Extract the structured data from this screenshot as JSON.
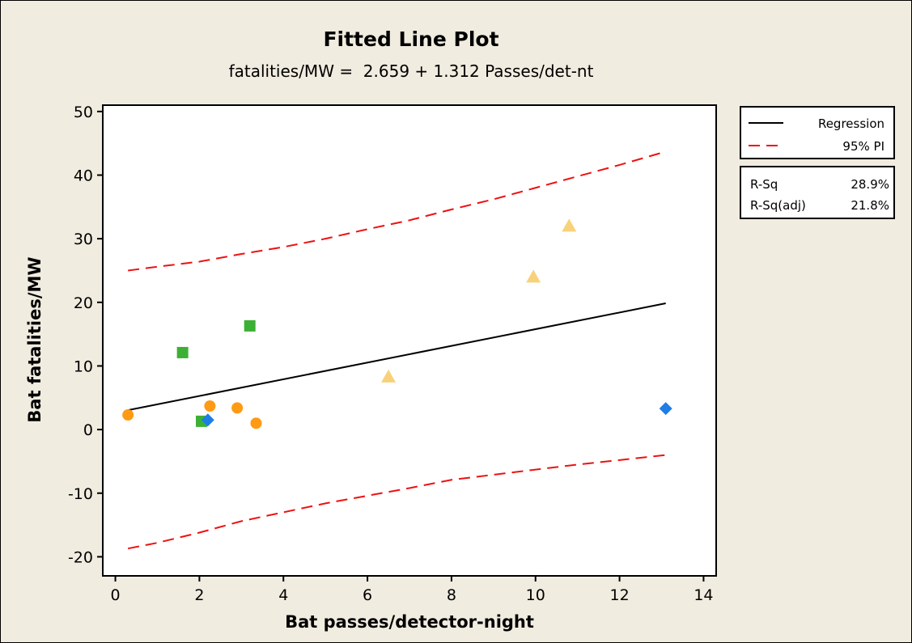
{
  "chart_data": {
    "type": "scatter",
    "title": "Fitted Line Plot",
    "subtitle": "fatalities/MW =  2.659 + 1.312 Passes/det-nt",
    "xlabel": "Bat passes/detector-night",
    "ylabel": "Bat fatalities/MW",
    "xlim": [
      -0.3,
      14.3
    ],
    "ylim": [
      -23,
      51
    ],
    "x_ticks": [
      0,
      2,
      4,
      6,
      8,
      10,
      12,
      14
    ],
    "y_ticks": [
      -20,
      -10,
      0,
      10,
      20,
      30,
      40,
      50
    ],
    "grid": false,
    "legend": {
      "placement": "right",
      "entries": [
        {
          "label": "Regression",
          "style": "solid",
          "color": "#000000"
        },
        {
          "label": "95% PI",
          "style": "dashed",
          "color": "#ee1111"
        }
      ]
    },
    "stats": [
      {
        "label": "R-Sq",
        "value": "28.9%"
      },
      {
        "label": "R-Sq(adj)",
        "value": "21.8%"
      }
    ],
    "regression": {
      "intercept": 2.659,
      "slope": 1.312,
      "x_range": [
        0.3,
        13.1
      ]
    },
    "prediction_interval_upper": [
      [
        0.3,
        25.0
      ],
      [
        1.0,
        25.6
      ],
      [
        2.0,
        26.4
      ],
      [
        3.0,
        27.6
      ],
      [
        4.0,
        28.7
      ],
      [
        5.0,
        30.0
      ],
      [
        6.0,
        31.5
      ],
      [
        7.0,
        32.9
      ],
      [
        8.0,
        34.6
      ],
      [
        9.0,
        36.2
      ],
      [
        10.0,
        38.0
      ],
      [
        11.0,
        39.8
      ],
      [
        12.0,
        41.6
      ],
      [
        13.1,
        43.7
      ]
    ],
    "prediction_interval_lower": [
      [
        0.3,
        -18.7
      ],
      [
        1.0,
        -17.8
      ],
      [
        2.0,
        -16.2
      ],
      [
        3.0,
        -14.4
      ],
      [
        4.0,
        -13.0
      ],
      [
        5.0,
        -11.6
      ],
      [
        6.0,
        -10.4
      ],
      [
        7.0,
        -9.2
      ],
      [
        8.0,
        -7.9
      ],
      [
        9.0,
        -7.1
      ],
      [
        10.0,
        -6.3
      ],
      [
        11.0,
        -5.5
      ],
      [
        12.0,
        -4.8
      ],
      [
        13.1,
        -4.0
      ]
    ],
    "groups": [
      {
        "marker": "circle",
        "color": "#ff9a14",
        "points": [
          [
            0.3,
            2.3
          ],
          [
            2.25,
            3.7
          ],
          [
            2.9,
            3.4
          ],
          [
            3.35,
            1.0
          ]
        ]
      },
      {
        "marker": "square",
        "color": "#3cb034",
        "points": [
          [
            1.6,
            12.1
          ],
          [
            2.05,
            1.3
          ],
          [
            3.2,
            16.3
          ]
        ]
      },
      {
        "marker": "diamond",
        "color": "#1e7de6",
        "points": [
          [
            2.2,
            1.5
          ],
          [
            13.1,
            3.3
          ]
        ]
      },
      {
        "marker": "triangle",
        "color": "#f8d27a",
        "points": [
          [
            6.5,
            8.3
          ],
          [
            9.95,
            24.0
          ],
          [
            10.8,
            32.0
          ]
        ]
      }
    ]
  }
}
